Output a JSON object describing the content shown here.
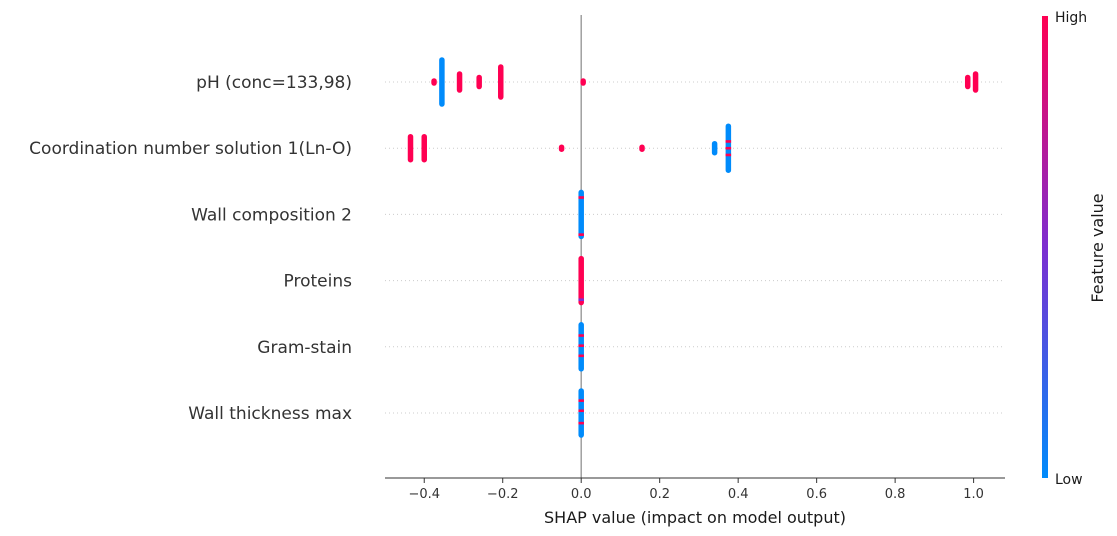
{
  "chart_data": {
    "type": "scatter",
    "subtype": "shap-beeswarm",
    "title": "",
    "xlabel": "SHAP value (impact on model output)",
    "xlim": [
      -0.5,
      1.08
    ],
    "xticks": [
      -0.4,
      -0.2,
      0.0,
      0.2,
      0.4,
      0.6,
      0.8,
      1.0
    ],
    "xtick_labels": [
      "−0.4",
      "−0.2",
      "0.0",
      "0.2",
      "0.4",
      "0.6",
      "0.8",
      "1.0"
    ],
    "zero_line": 0.0,
    "grid": false,
    "colorbar": {
      "label": "Feature value",
      "high_label": "High",
      "low_label": "Low",
      "high_color": "#ff0052",
      "mid_color": "#7d2ed0",
      "low_color": "#008bfb",
      "placement": "right"
    },
    "features": [
      {
        "name": "pH (conc=133,98)",
        "points": [
          {
            "x": -0.355,
            "spread": 7,
            "color": "low"
          },
          {
            "x": -0.375,
            "spread": 1,
            "color": "high"
          },
          {
            "x": -0.31,
            "spread": 3,
            "color": "high"
          },
          {
            "x": -0.26,
            "spread": 2,
            "color": "high"
          },
          {
            "x": -0.205,
            "spread": 5,
            "color": "high"
          },
          {
            "x": 0.005,
            "spread": 1,
            "color": "high"
          },
          {
            "x": 0.985,
            "spread": 2,
            "color": "high"
          },
          {
            "x": 1.005,
            "spread": 3,
            "color": "high"
          }
        ]
      },
      {
        "name": "Coordination number solution 1(Ln-O)",
        "points": [
          {
            "x": -0.435,
            "spread": 4,
            "color": "high"
          },
          {
            "x": -0.4,
            "spread": 4,
            "color": "high"
          },
          {
            "x": -0.05,
            "spread": 1,
            "color": "high"
          },
          {
            "x": 0.155,
            "spread": 1,
            "color": "high"
          },
          {
            "x": 0.34,
            "spread": 2,
            "color": "low"
          },
          {
            "x": 0.375,
            "spread": 7,
            "color": "low",
            "accents": [
              -0.3,
              0.0,
              0.3
            ]
          }
        ]
      },
      {
        "name": "Wall composition 2",
        "points": [
          {
            "x": 0.0,
            "spread": 7,
            "color": "low",
            "accents": [
              -0.75,
              0.9
            ]
          }
        ]
      },
      {
        "name": "Proteins",
        "points": [
          {
            "x": 0.0,
            "spread": 7,
            "color": "high",
            "accents": [
              0.85
            ]
          }
        ]
      },
      {
        "name": "Gram-stain",
        "points": [
          {
            "x": 0.0,
            "spread": 7,
            "color": "low",
            "accents": [
              -0.5,
              -0.05,
              0.4
            ]
          }
        ]
      },
      {
        "name": "Wall thickness max",
        "points": [
          {
            "x": 0.0,
            "spread": 7,
            "color": "low",
            "accents": [
              -0.55,
              -0.1,
              0.45
            ]
          }
        ]
      }
    ]
  }
}
